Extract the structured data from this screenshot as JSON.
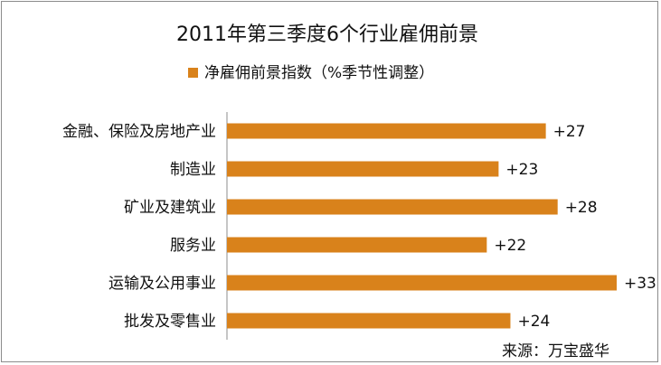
{
  "chart_data": {
    "type": "bar",
    "orientation": "horizontal",
    "title": "2011年第三季度6个行业雇佣前景",
    "categories": [
      "金融、保险及房地产业",
      "制造业",
      "矿业及建筑业",
      "服务业",
      "运输及公用事业",
      "批发及零售业"
    ],
    "series": [
      {
        "name": "净雇佣前景指数（%季节性调整）",
        "values": [
          27,
          23,
          28,
          22,
          33,
          24
        ],
        "value_labels": [
          "+27",
          "+23",
          "+28",
          "+22",
          "+33",
          "+24"
        ],
        "color": "#D9821B"
      }
    ],
    "xlim": [
      0,
      33
    ],
    "grid": false,
    "legend_position": "top"
  },
  "source_note": "来源：万宝盛华"
}
